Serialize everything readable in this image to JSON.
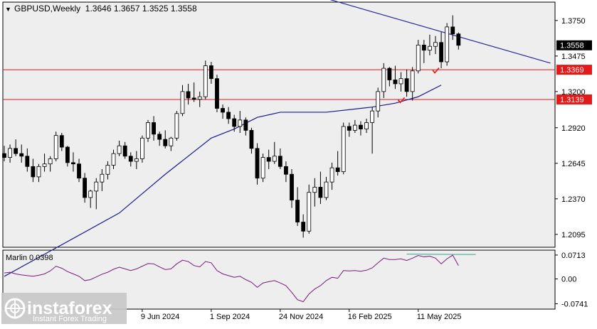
{
  "chart_title": "GBPUSD,Weekly  1.3646 1.3657 1.3525 1.3558",
  "indicator_label": "Marlin 0.0398",
  "colors": {
    "background": "#ffffff",
    "plot_bg": "#eeeeee",
    "candle_up": "#ffffff",
    "candle_down": "#000000",
    "candle_outline": "#000000",
    "ma_line": "#1a1a8c",
    "trend_line": "#2b2b9a",
    "level_line": "#e21a1a",
    "level_label_bg": "#e21a1a",
    "current_label_bg": "#000000",
    "oscillator": "#7a1a7a",
    "oscillator_signal": "#2aa88a",
    "check_mark": "#e21a1a",
    "grid_text": "#000000"
  },
  "watermark": {
    "brand": "instaforex",
    "tagline": "Instant Forex Trading"
  },
  "chart_data": [
    {
      "type": "candlestick",
      "title": "GBPUSD,Weekly  1.3646 1.3657 1.3525 1.3558",
      "ylim": [
        1.1995,
        1.3892
      ],
      "y_ticks": [
        "1.3750",
        "1.3475",
        "1.3200",
        "1.2920",
        "1.2645",
        "1.2370",
        "1.2095"
      ],
      "x_tick_labels": [
        "9 Jun 2024",
        "1 Sep 2024",
        "24 Nov 2024",
        "16 Feb 2025",
        "11 May 2025"
      ],
      "x_tick_index": [
        24,
        36,
        48,
        60,
        72
      ],
      "current_price": "1.3558",
      "levels": [
        {
          "value": 1.3369,
          "label": "1.3369"
        },
        {
          "value": 1.3139,
          "label": "1.3139"
        }
      ],
      "ohlc": [
        [
          1.272,
          1.278,
          1.266,
          1.269
        ],
        [
          1.269,
          1.279,
          1.265,
          1.276
        ],
        [
          1.276,
          1.283,
          1.27,
          1.272
        ],
        [
          1.272,
          1.279,
          1.265,
          1.27
        ],
        [
          1.27,
          1.276,
          1.258,
          1.262
        ],
        [
          1.262,
          1.268,
          1.25,
          1.254
        ],
        [
          1.254,
          1.264,
          1.25,
          1.262
        ],
        [
          1.262,
          1.272,
          1.258,
          1.264
        ],
        [
          1.264,
          1.27,
          1.258,
          1.268
        ],
        [
          1.268,
          1.289,
          1.266,
          1.286
        ],
        [
          1.286,
          1.288,
          1.274,
          1.277
        ],
        [
          1.277,
          1.278,
          1.262,
          1.265
        ],
        [
          1.265,
          1.273,
          1.258,
          1.264
        ],
        [
          1.264,
          1.268,
          1.25,
          1.253
        ],
        [
          1.253,
          1.257,
          1.234,
          1.238
        ],
        [
          1.238,
          1.244,
          1.23,
          1.243
        ],
        [
          1.243,
          1.253,
          1.229,
          1.25
        ],
        [
          1.25,
          1.26,
          1.243,
          1.256
        ],
        [
          1.256,
          1.266,
          1.252,
          1.263
        ],
        [
          1.263,
          1.275,
          1.26,
          1.272
        ],
        [
          1.272,
          1.282,
          1.27,
          1.278
        ],
        [
          1.278,
          1.281,
          1.268,
          1.27
        ],
        [
          1.27,
          1.273,
          1.262,
          1.266
        ],
        [
          1.266,
          1.274,
          1.26,
          1.268
        ],
        [
          1.268,
          1.286,
          1.265,
          1.284
        ],
        [
          1.284,
          1.298,
          1.281,
          1.296
        ],
        [
          1.296,
          1.301,
          1.282,
          1.287
        ],
        [
          1.287,
          1.289,
          1.278,
          1.283
        ],
        [
          1.283,
          1.29,
          1.276,
          1.278
        ],
        [
          1.278,
          1.285,
          1.274,
          1.284
        ],
        [
          1.284,
          1.305,
          1.282,
          1.303
        ],
        [
          1.303,
          1.325,
          1.301,
          1.32
        ],
        [
          1.32,
          1.326,
          1.31,
          1.315
        ],
        [
          1.315,
          1.327,
          1.312,
          1.314
        ],
        [
          1.314,
          1.32,
          1.308,
          1.316
        ],
        [
          1.316,
          1.344,
          1.314,
          1.34
        ],
        [
          1.34,
          1.343,
          1.326,
          1.33
        ],
        [
          1.33,
          1.333,
          1.304,
          1.307
        ],
        [
          1.307,
          1.31,
          1.299,
          1.304
        ],
        [
          1.304,
          1.308,
          1.295,
          1.299
        ],
        [
          1.299,
          1.302,
          1.289,
          1.293
        ],
        [
          1.293,
          1.305,
          1.288,
          1.298
        ],
        [
          1.298,
          1.3,
          1.286,
          1.29
        ],
        [
          1.29,
          1.292,
          1.272,
          1.276
        ],
        [
          1.276,
          1.28,
          1.248,
          1.253
        ],
        [
          1.253,
          1.272,
          1.25,
          1.269
        ],
        [
          1.269,
          1.275,
          1.26,
          1.266
        ],
        [
          1.266,
          1.281,
          1.264,
          1.27
        ],
        [
          1.27,
          1.276,
          1.26,
          1.262
        ],
        [
          1.262,
          1.266,
          1.25,
          1.256
        ],
        [
          1.256,
          1.26,
          1.23,
          1.236
        ],
        [
          1.236,
          1.246,
          1.216,
          1.219
        ],
        [
          1.219,
          1.225,
          1.207,
          1.212
        ],
        [
          1.212,
          1.248,
          1.21,
          1.242
        ],
        [
          1.242,
          1.253,
          1.231,
          1.246
        ],
        [
          1.246,
          1.258,
          1.233,
          1.238
        ],
        [
          1.238,
          1.254,
          1.236,
          1.25
        ],
        [
          1.25,
          1.265,
          1.244,
          1.261
        ],
        [
          1.261,
          1.274,
          1.255,
          1.258
        ],
        [
          1.258,
          1.296,
          1.256,
          1.293
        ],
        [
          1.293,
          1.296,
          1.285,
          1.29
        ],
        [
          1.29,
          1.298,
          1.288,
          1.294
        ],
        [
          1.294,
          1.297,
          1.286,
          1.291
        ],
        [
          1.291,
          1.299,
          1.288,
          1.296
        ],
        [
          1.296,
          1.308,
          1.272,
          1.305
        ],
        [
          1.305,
          1.323,
          1.3,
          1.32
        ],
        [
          1.32,
          1.342,
          1.315,
          1.338
        ],
        [
          1.338,
          1.339,
          1.324,
          1.329
        ],
        [
          1.329,
          1.34,
          1.322,
          1.326
        ],
        [
          1.326,
          1.335,
          1.32,
          1.33
        ],
        [
          1.33,
          1.337,
          1.316,
          1.32
        ],
        [
          1.32,
          1.339,
          1.313,
          1.336
        ],
        [
          1.336,
          1.36,
          1.334,
          1.356
        ],
        [
          1.356,
          1.36,
          1.342,
          1.352
        ],
        [
          1.352,
          1.364,
          1.348,
          1.355
        ],
        [
          1.355,
          1.363,
          1.349,
          1.358
        ],
        [
          1.358,
          1.366,
          1.338,
          1.343
        ],
        [
          1.343,
          1.373,
          1.34,
          1.37
        ],
        [
          1.37,
          1.379,
          1.36,
          1.3646
        ],
        [
          1.3646,
          1.3657,
          1.3525,
          1.3558
        ]
      ],
      "ma": [
        [
          0,
          1.177
        ],
        [
          20,
          1.226
        ],
        [
          28,
          1.256
        ],
        [
          36,
          1.284
        ],
        [
          40,
          1.291
        ],
        [
          44,
          1.3
        ],
        [
          48,
          1.304
        ],
        [
          56,
          1.304
        ],
        [
          64,
          1.308
        ],
        [
          68,
          1.311
        ],
        [
          72,
          1.316
        ],
        [
          76,
          1.325
        ]
      ],
      "trendline": [
        [
          56,
          1.392
        ],
        [
          95,
          1.342
        ]
      ],
      "check_marks": [
        [
          69,
          1.312
        ],
        [
          75,
          1.335
        ]
      ]
    },
    {
      "type": "line",
      "title": "Marlin 0.0398",
      "ylim": [
        -0.09,
        0.086
      ],
      "y_ticks": [
        "0.0713",
        "0.00",
        "-0.0741"
      ],
      "series": [
        {
          "values": [
            0.018,
            0.02,
            0.015,
            0.012,
            0.01,
            0.008,
            0.011,
            0.015,
            0.024,
            0.038,
            0.032,
            0.022,
            0.015,
            0.008,
            -0.005,
            -0.002,
            0.006,
            0.014,
            0.02,
            0.029,
            0.035,
            0.03,
            0.025,
            0.03,
            0.038,
            0.046,
            0.045,
            0.036,
            0.028,
            0.03,
            0.045,
            0.056,
            0.052,
            0.04,
            0.036,
            0.052,
            0.048,
            0.025,
            0.015,
            0.01,
            0.005,
            0.008,
            -0.002,
            -0.01,
            -0.025,
            -0.012,
            -0.008,
            -0.005,
            -0.012,
            -0.02,
            -0.04,
            -0.062,
            -0.068,
            -0.045,
            -0.03,
            -0.02,
            -0.005,
            0.005,
            0.002,
            0.025,
            0.024,
            0.025,
            0.023,
            0.026,
            0.033,
            0.048,
            0.062,
            0.058,
            0.058,
            0.06,
            0.055,
            0.062,
            0.07,
            0.066,
            0.068,
            0.062,
            0.045,
            0.06,
            0.071,
            0.0398
          ]
        },
        {
          "values": [
            [
              70,
              0.074
            ],
            [
              82,
              0.073
            ]
          ]
        }
      ]
    }
  ]
}
